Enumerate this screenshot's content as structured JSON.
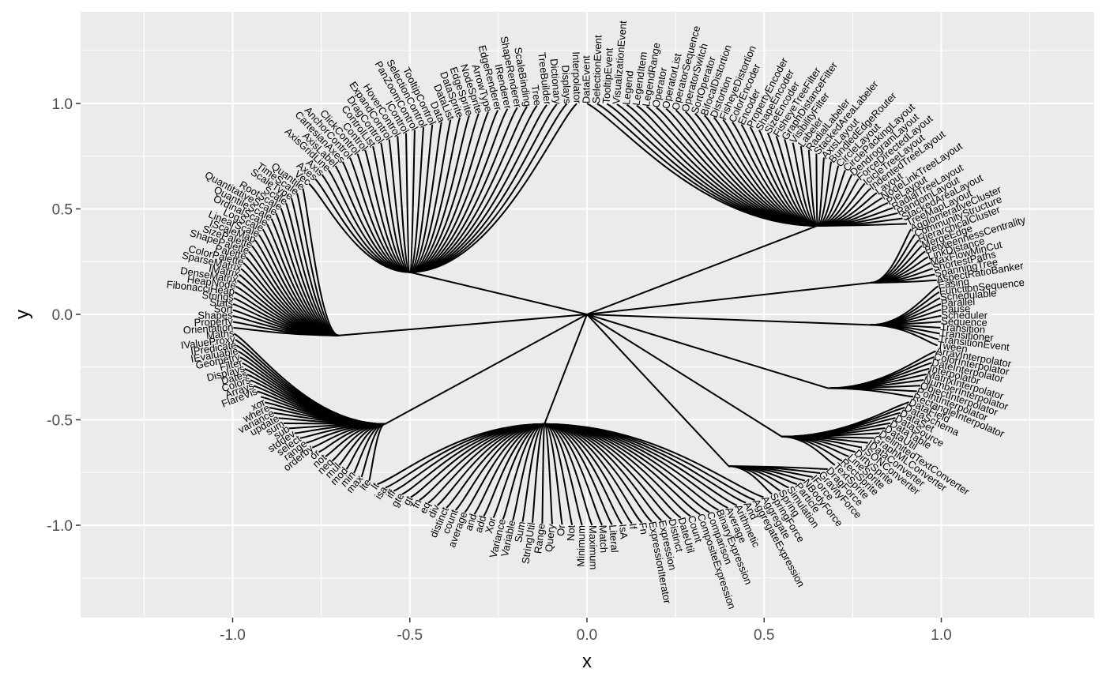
{
  "chart_data": {
    "type": "dendrogram",
    "layout": "radial-half-ellipse",
    "xlabel": "x",
    "ylabel": "y",
    "xlim": [
      -1.43,
      1.43
    ],
    "ylim": [
      -1.43,
      1.43
    ],
    "x_ticks": [
      -1.0,
      -0.5,
      0.0,
      0.5,
      1.0
    ],
    "y_ticks": [
      1.0,
      0.5,
      0.0,
      -0.5,
      -1.0
    ],
    "x_tick_labels": [
      "-1.0",
      "-0.5",
      "0.0",
      "0.5",
      "1.0"
    ],
    "y_tick_labels": [
      "1.0",
      "0.5",
      "0.0",
      "-0.5",
      "-1.0"
    ],
    "grid": true,
    "colors": {
      "panel": "#ebebeb",
      "grid": "#ffffff",
      "edge": "#000000",
      "text": "#000000",
      "tick_text": "#4d4d4d"
    },
    "root": [
      0.0,
      0.0
    ],
    "groups": [
      {
        "hub": [
          0.65,
          0.42
        ],
        "leaves": [
          "DataEvent",
          "SelectionEvent",
          "TooltipEvent",
          "VisualizationEvent",
          "Legend",
          "LegendItem",
          "LegendRange",
          "Operator",
          "OperatorList",
          "OperatorSequence",
          "OperatorSwitch",
          "SortOperator",
          "BifocalDistortion",
          "Distortion",
          "FisheyeDistortion",
          "ColorEncoder",
          "Encoder",
          "PropertyEncoder",
          "ShapeEncoder",
          "SizeEncoder",
          "FisheyeTreeFilter",
          "GraphDistanceFilter",
          "VisibilityFilter",
          "Labeler",
          "RadialLabeler",
          "StackedAreaLabeler",
          "AxisLayout",
          "BundledEdgeRouter",
          "CircleLayout",
          "CirclePackingLayout",
          "DendrogramLayout",
          "ForceDirectedLayout",
          "IcicleTreeLayout",
          "IndentedTreeLayout",
          "Layout",
          "NodeLinkTreeLayout",
          "PieLayout",
          "RadialTreeLayout",
          "RandomLayout",
          "StackedAreaLayout",
          "TreeMapLayout"
        ]
      },
      {
        "hub": [
          0.8,
          0.15
        ],
        "leaves": [
          "AgglomerativeCluster",
          "CommunityStructure",
          "HierarchicalCluster",
          "MergeEdge",
          "BetweennessCentrality",
          "LinkDistance",
          "MaxFlowMinCut",
          "ShortestPaths",
          "SpanningTree",
          "AspectRatioBanker"
        ]
      },
      {
        "hub": [
          0.8,
          -0.05
        ],
        "leaves": [
          "Easing",
          "FunctionSequence",
          "Schedulable",
          "Parallel",
          "Pause",
          "Scheduler",
          "Sequence",
          "Transition",
          "Transitioner",
          "TransitionEvent",
          "Tween"
        ]
      },
      {
        "hub": [
          0.68,
          -0.35
        ],
        "leaves": [
          "ArrayInterpolator",
          "ColorInterpolator",
          "DateInterpolator",
          "Interpolator",
          "MatrixInterpolator",
          "NumberInterpolator",
          "ObjectInterpolator",
          "PointInterpolator",
          "RectangleInterpolator"
        ]
      },
      {
        "hub": [
          0.55,
          -0.58
        ],
        "leaves": [
          "DataField",
          "DataSchema",
          "DataSet",
          "DataSource",
          "DataTable",
          "DataUtil",
          "DelimitedTextConverter",
          "GraphMLConverter",
          "IDataConverter",
          "JSONConverter",
          "DirtySprite",
          "LineSprite",
          "RectSprite",
          "TextSprite"
        ]
      },
      {
        "hub": [
          0.4,
          -0.72
        ],
        "leaves": [
          "DragForce",
          "GravityForce",
          "IForce",
          "NBodyForce",
          "Particle",
          "Simulation",
          "Spring",
          "SpringForce"
        ]
      },
      {
        "hub": [
          -0.12,
          -0.52
        ],
        "leaves": [
          "Aggregate",
          "AggregateExpression",
          "And",
          "Arithmetic",
          "Average",
          "BinaryExpression",
          "Comparison",
          "CompositeExpression",
          "Count",
          "DateUtil",
          "Distinct",
          "Expression",
          "ExpressionIterator",
          "Fn",
          "If",
          "IsA",
          "Literal",
          "Match",
          "Maximum",
          "Minimum",
          "Not",
          "Or",
          "Query",
          "Range",
          "StringUtil",
          "Sum",
          "Variable",
          "Variance",
          "Xor",
          "add",
          "and",
          "average",
          "count",
          "distinct",
          "div",
          "eq",
          "fn",
          "gt",
          "gte",
          "iff",
          "isa",
          "lt"
        ]
      },
      {
        "hub": [
          -0.57,
          -0.52
        ],
        "leaves": [
          "lte",
          "max",
          "min",
          "mod",
          "mul",
          "neq",
          "not",
          "or",
          "orderby",
          "range",
          "select",
          "stddev",
          "sub",
          "sum",
          "update",
          "variance",
          "where",
          "xor",
          "_",
          "FlareVis",
          "Arrays",
          "Colors",
          "Dates",
          "Displays",
          "Filter",
          "Geometry",
          "IEvaluable",
          "IPredicate",
          "IValueProxy",
          "Maths"
        ]
      },
      {
        "hub": [
          -0.7,
          -0.1
        ],
        "leaves": [
          "Orientation",
          "Property",
          "Shapes",
          "Sort",
          "Stats",
          "Strings",
          "FibonacciHeap",
          "HeapNode",
          "DenseMatrix",
          "IMatrix",
          "SparseMatrix",
          "ColorPalette",
          "Palette",
          "ShapePalette",
          "SizePalette",
          "IScaleMap",
          "LinearScale",
          "LogScale",
          "OrdinalScale",
          "QuantileScale",
          "QuantitativeScale",
          "RootScale",
          "Scale",
          "ScaleType",
          "TimeScale",
          "Quantile"
        ]
      },
      {
        "hub": [
          -0.5,
          0.2
        ],
        "leaves": [
          "Vec",
          "Axes",
          "Axis",
          "AxisGridLine",
          "AxisLabel",
          "CartesianAxes",
          "AnchorControl",
          "ClickControl",
          "Control",
          "ControlList",
          "DragControl",
          "ExpandControl",
          "HoverControl",
          "IControl",
          "PanZoomControl",
          "SelectionControl",
          "TooltipControl",
          "Data",
          "DataList",
          "DataSprite",
          "EdgeSprite",
          "NodeSprite",
          "ArrowType",
          "EdgeRenderer",
          "IRenderer",
          "ShapeRenderer",
          "ScaleBinding",
          "Tree",
          "TreeBuilder",
          "Dictionary",
          "Displays",
          "Interpolator"
        ]
      }
    ],
    "special_labels": [
      "ArrowType",
      "EdgeRenderer",
      "ShapeRenderer",
      "TreeBuilder",
      "Quantile"
    ]
  }
}
